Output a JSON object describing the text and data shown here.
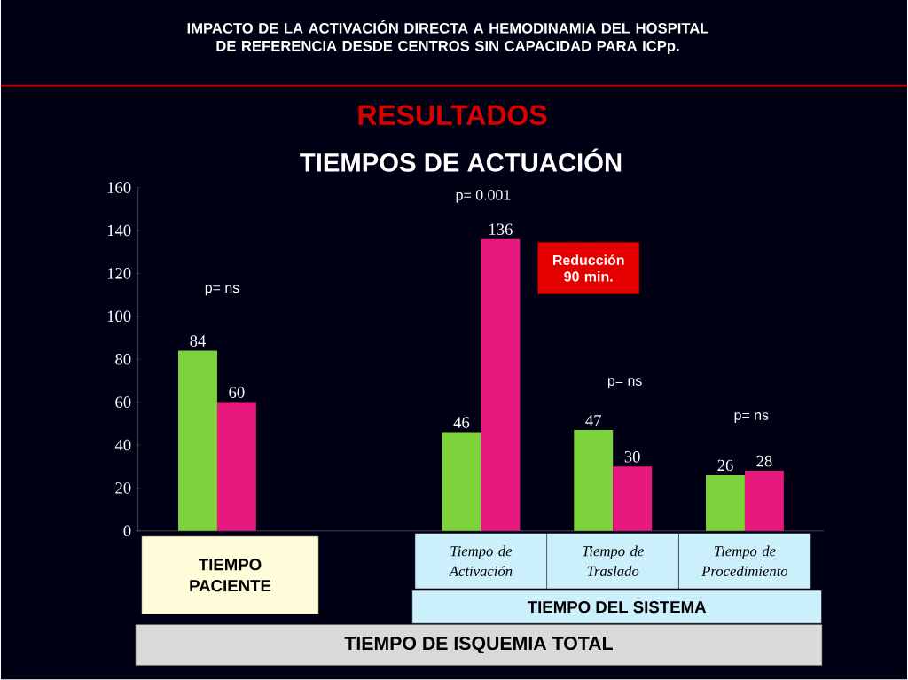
{
  "chart_data": {
    "type": "bar",
    "title": "IMPACTO DE LA ACTIVACIÓN DIRECTA A HEMODINAMIA DEL HOSPITAL DE REFERENCIA DESDE CENTROS SIN CAPACIDAD PARA ICPp.",
    "subtitle": "RESULTADOS",
    "categories": [
      "TIEMPO PACIENTE",
      null,
      "Tiempo de Activación",
      "Tiempo de Traslado",
      "Tiempo de Procedimiento"
    ],
    "series": [
      {
        "color": "#7ed23c",
        "values": [
          84,
          null,
          46,
          47,
          26
        ]
      },
      {
        "color": "#e8197e",
        "values": [
          60,
          null,
          136,
          30,
          28
        ]
      }
    ],
    "ylim": [
      0,
      160
    ],
    "yticks": [
      0,
      20,
      40,
      60,
      80,
      100,
      120,
      140,
      160
    ],
    "data_labels": true,
    "annotations": [
      "p= ns",
      "p= 0.001",
      "Reducción 90 min.",
      "p= ns",
      "p= ns",
      "TIEMPOS DE ACTUACIÓN",
      "TIEMPO DEL SISTEMA",
      "TIEMPO DE ISQUEMIA TOTAL"
    ]
  }
}
